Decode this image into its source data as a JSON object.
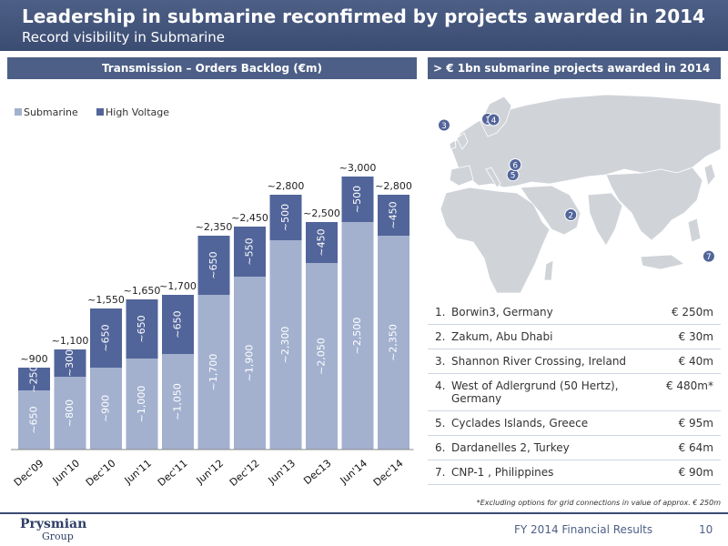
{
  "header": {
    "title": "Leadership in submarine reconfirmed by projects awarded in 2014",
    "subtitle": "Record visibility in Submarine"
  },
  "left_section": {
    "title": "Transmission – Orders Backlog (€m)"
  },
  "right_section": {
    "title": "> € 1bn submarine projects awarded in 2014"
  },
  "colors": {
    "submarine": "#a3b1cf",
    "high_voltage": "#52659a",
    "header": "#4d5f86"
  },
  "chart_data": {
    "type": "bar",
    "stacked": true,
    "categories": [
      "Dec'09",
      "Jun'10",
      "Dec'10",
      "Jun'11",
      "Dec'11",
      "Jun'12",
      "Dec'12",
      "Jun'13",
      "Dec13",
      "Jun'14",
      "Dec'14"
    ],
    "series": [
      {
        "name": "Submarine",
        "values": [
          650,
          800,
          900,
          1000,
          1050,
          1700,
          1900,
          2300,
          2050,
          2500,
          2350
        ],
        "labels": [
          "~650",
          "~800",
          "~900",
          "~1,000",
          "~1,050",
          "~1,700",
          "~1,900",
          "~2,300",
          "~2,050",
          "~2,500",
          "~2,350"
        ]
      },
      {
        "name": "High Voltage",
        "values": [
          250,
          300,
          650,
          650,
          650,
          650,
          550,
          500,
          450,
          500,
          450
        ],
        "labels": [
          "~250",
          "~300",
          "~650",
          "~650",
          "~650",
          "~650",
          "~550",
          "~500",
          "~450",
          "~500",
          "~450"
        ]
      }
    ],
    "totals": [
      "~900",
      "~1,100",
      "~1,550",
      "~1,650",
      "~1,700",
      "~2,350",
      "~2,450",
      "~2,800",
      "~2,500",
      "~3,000",
      "~2,800"
    ],
    "ylim": [
      0,
      3300
    ],
    "legend": "top-left",
    "grid": false
  },
  "map": {
    "markers": [
      {
        "label": "1",
        "lat": 54.5,
        "lon": 12.5
      },
      {
        "label": "2",
        "lat": 24.5,
        "lon": 54.4
      },
      {
        "label": "3",
        "lat": 52.6,
        "lon": -9.5
      },
      {
        "label": "4",
        "lat": 54.3,
        "lon": 15.5
      },
      {
        "label": "5",
        "lat": 37.0,
        "lon": 25.2
      },
      {
        "label": "6",
        "lat": 40.2,
        "lon": 26.4
      },
      {
        "label": "7",
        "lat": 11.5,
        "lon": 124.0
      }
    ]
  },
  "projects": [
    {
      "num": "1.",
      "name": "Borwin3, Germany",
      "value": "€ 250m"
    },
    {
      "num": "2.",
      "name": "Zakum, Abu Dhabi",
      "value": "€ 30m"
    },
    {
      "num": "3.",
      "name": "Shannon River Crossing, Ireland",
      "value": "€ 40m"
    },
    {
      "num": "4.",
      "name": "West of Adlergrund (50 Hertz), Germany",
      "value": "€ 480m*"
    },
    {
      "num": "5.",
      "name": "Cyclades Islands, Greece",
      "value": "€ 95m"
    },
    {
      "num": "6.",
      "name": "Dardanelles 2, Turkey",
      "value": "€ 64m"
    },
    {
      "num": "7.",
      "name": "CNP-1 , Philippines",
      "value": "€ 90m"
    }
  ],
  "footnote": "*Excluding options for grid connections in value of approx. € 250m",
  "footer": {
    "company": "Prysmian",
    "group": "Group",
    "text": "FY 2014 Financial Results",
    "page": "10"
  }
}
